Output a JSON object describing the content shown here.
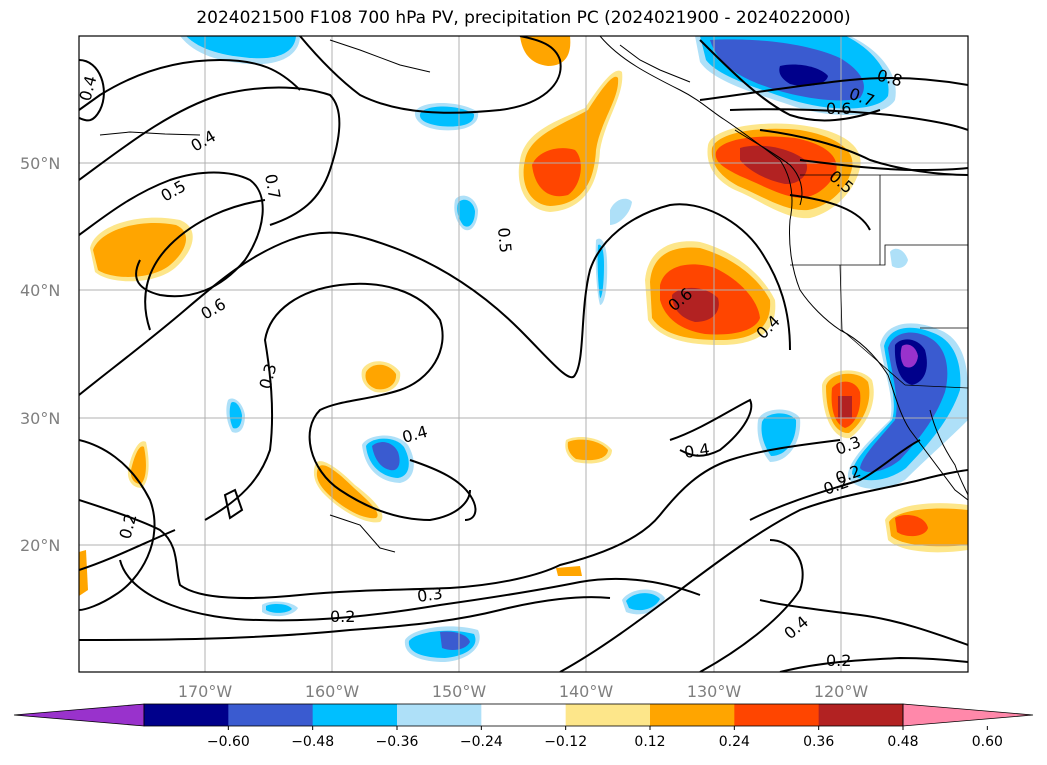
{
  "title": "2024021500 F108 700 hPa PV, precipitation PC (2024021900 - 2024022000)",
  "lat_labels": [
    "50°N",
    "40°N",
    "30°N",
    "20°N"
  ],
  "lon_labels": [
    "170°W",
    "160°W",
    "150°W",
    "140°W",
    "130°W",
    "120°W"
  ],
  "contour_labels": [
    "0.4",
    "0.4",
    "0.5",
    "0.7",
    "0.6",
    "0.3",
    "0.2",
    "0.5",
    "0.6",
    "0.4",
    "0.4",
    "0.3",
    "0.2",
    "0.2",
    "0.4",
    "0.2",
    "0.8",
    "0.7",
    "0.6",
    "0.5",
    "0.3",
    "0.4",
    "0.2"
  ],
  "colorbar": {
    "ticks": [
      "−0.60",
      "−0.48",
      "−0.36",
      "−0.24",
      "−0.12",
      "0.12",
      "0.24",
      "0.36",
      "0.48",
      "0.60"
    ],
    "colors": [
      "#9932cc",
      "#00008b",
      "#3a5bd0",
      "#00bfff",
      "#aee0f8",
      "#ffffff",
      "#fde68a",
      "#ffa500",
      "#ff4500",
      "#b22222",
      "#ff88aa"
    ]
  }
}
